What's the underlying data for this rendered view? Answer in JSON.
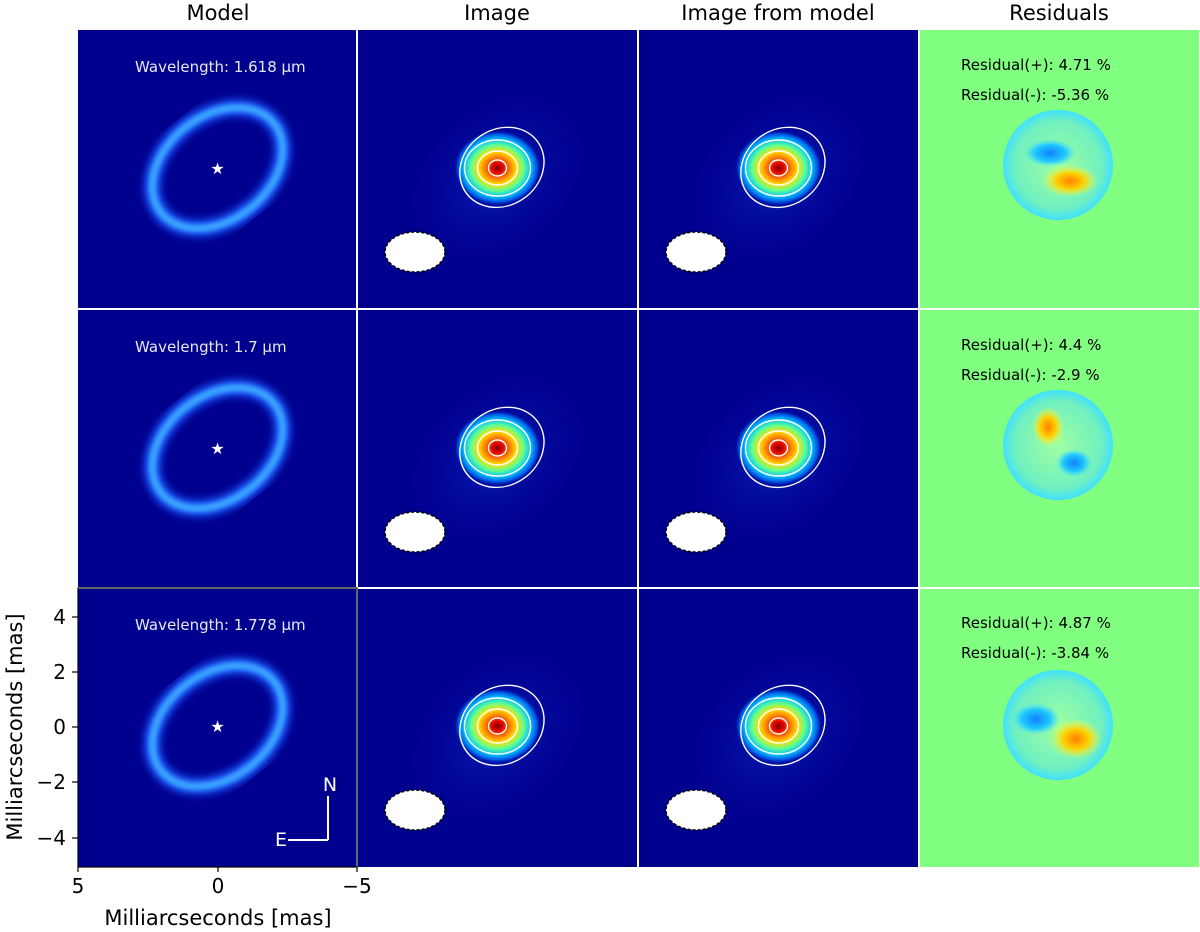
{
  "column_titles": [
    "Model",
    "Image",
    "Image from model",
    "Residuals"
  ],
  "rows": [
    {
      "wavelength_label": "Wavelength: 1.618 μm",
      "residual_pos": "Residual(+): 4.71 %",
      "residual_neg": "Residual(-): -5.36 %"
    },
    {
      "wavelength_label": "Wavelength: 1.7 μm",
      "residual_pos": "Residual(+): 4.4 %",
      "residual_neg": "Residual(-): -2.9 %"
    },
    {
      "wavelength_label": "Wavelength: 1.778 μm",
      "residual_pos": "Residual(+): 4.87 %",
      "residual_neg": "Residual(-): -3.84 %"
    }
  ],
  "axes": {
    "xlabel": "Milliarcseconds [mas]",
    "ylabel": "Milliarcseconds [mas]",
    "xticks": [
      "5",
      "0",
      "−5"
    ],
    "yticks": [
      "4",
      "2",
      "0",
      "−2",
      "−4"
    ]
  },
  "compass": {
    "north": "N",
    "east": "E"
  },
  "colors": {
    "background_map": "#00008f",
    "residual_bg": "#80ff80",
    "ring": "#3aa6ff",
    "divider": "#ffffff"
  },
  "chart_data": {
    "type": "heatmap",
    "panel_grid": "3 rows x 4 columns",
    "x_range": [
      5,
      -5
    ],
    "y_range": [
      -5,
      5
    ],
    "xlabel": "Milliarcseconds [mas]",
    "ylabel": "Milliarcseconds [mas]",
    "xticks": [
      5,
      0,
      -5
    ],
    "yticks": [
      4,
      2,
      0,
      -2,
      -4
    ],
    "wavelengths_um": [
      1.618,
      1.7,
      1.778
    ],
    "residual_pos_pct": [
      4.71,
      4.4,
      4.87
    ],
    "residual_neg_pct": [
      -5.36,
      -2.9,
      -3.84
    ],
    "colormap": "jet"
  }
}
